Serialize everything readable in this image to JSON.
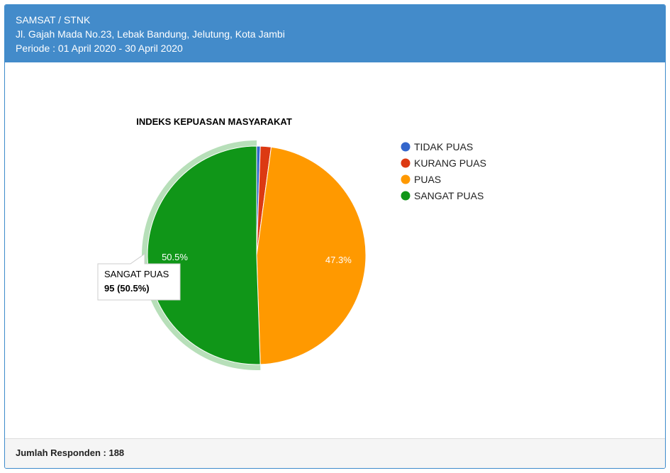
{
  "header": {
    "title": "SAMSAT / STNK",
    "address": "Jl. Gajah Mada No.23, Lebak Bandung, Jelutung, Kota Jambi",
    "period": "Periode : 01 April 2020 - 30 April 2020"
  },
  "footer": {
    "respondents": "Jumlah Responden : 188"
  },
  "chart_data": {
    "type": "pie",
    "title": "INDEKS KEPUASAN MASYARAKAT",
    "categories": [
      "TIDAK PUAS",
      "KURANG PUAS",
      "PUAS",
      "SANGAT PUAS"
    ],
    "values": [
      1,
      3,
      89,
      95
    ],
    "percent_labels": [
      "",
      "",
      "47.3%",
      "50.5%"
    ],
    "colors": [
      "#3366cc",
      "#dc3912",
      "#ff9900",
      "#109618"
    ],
    "highlighted": "SANGAT PUAS",
    "legend_position": "right",
    "tooltip": {
      "label": "SANGAT PUAS",
      "value": "95 (50.5%)"
    }
  }
}
